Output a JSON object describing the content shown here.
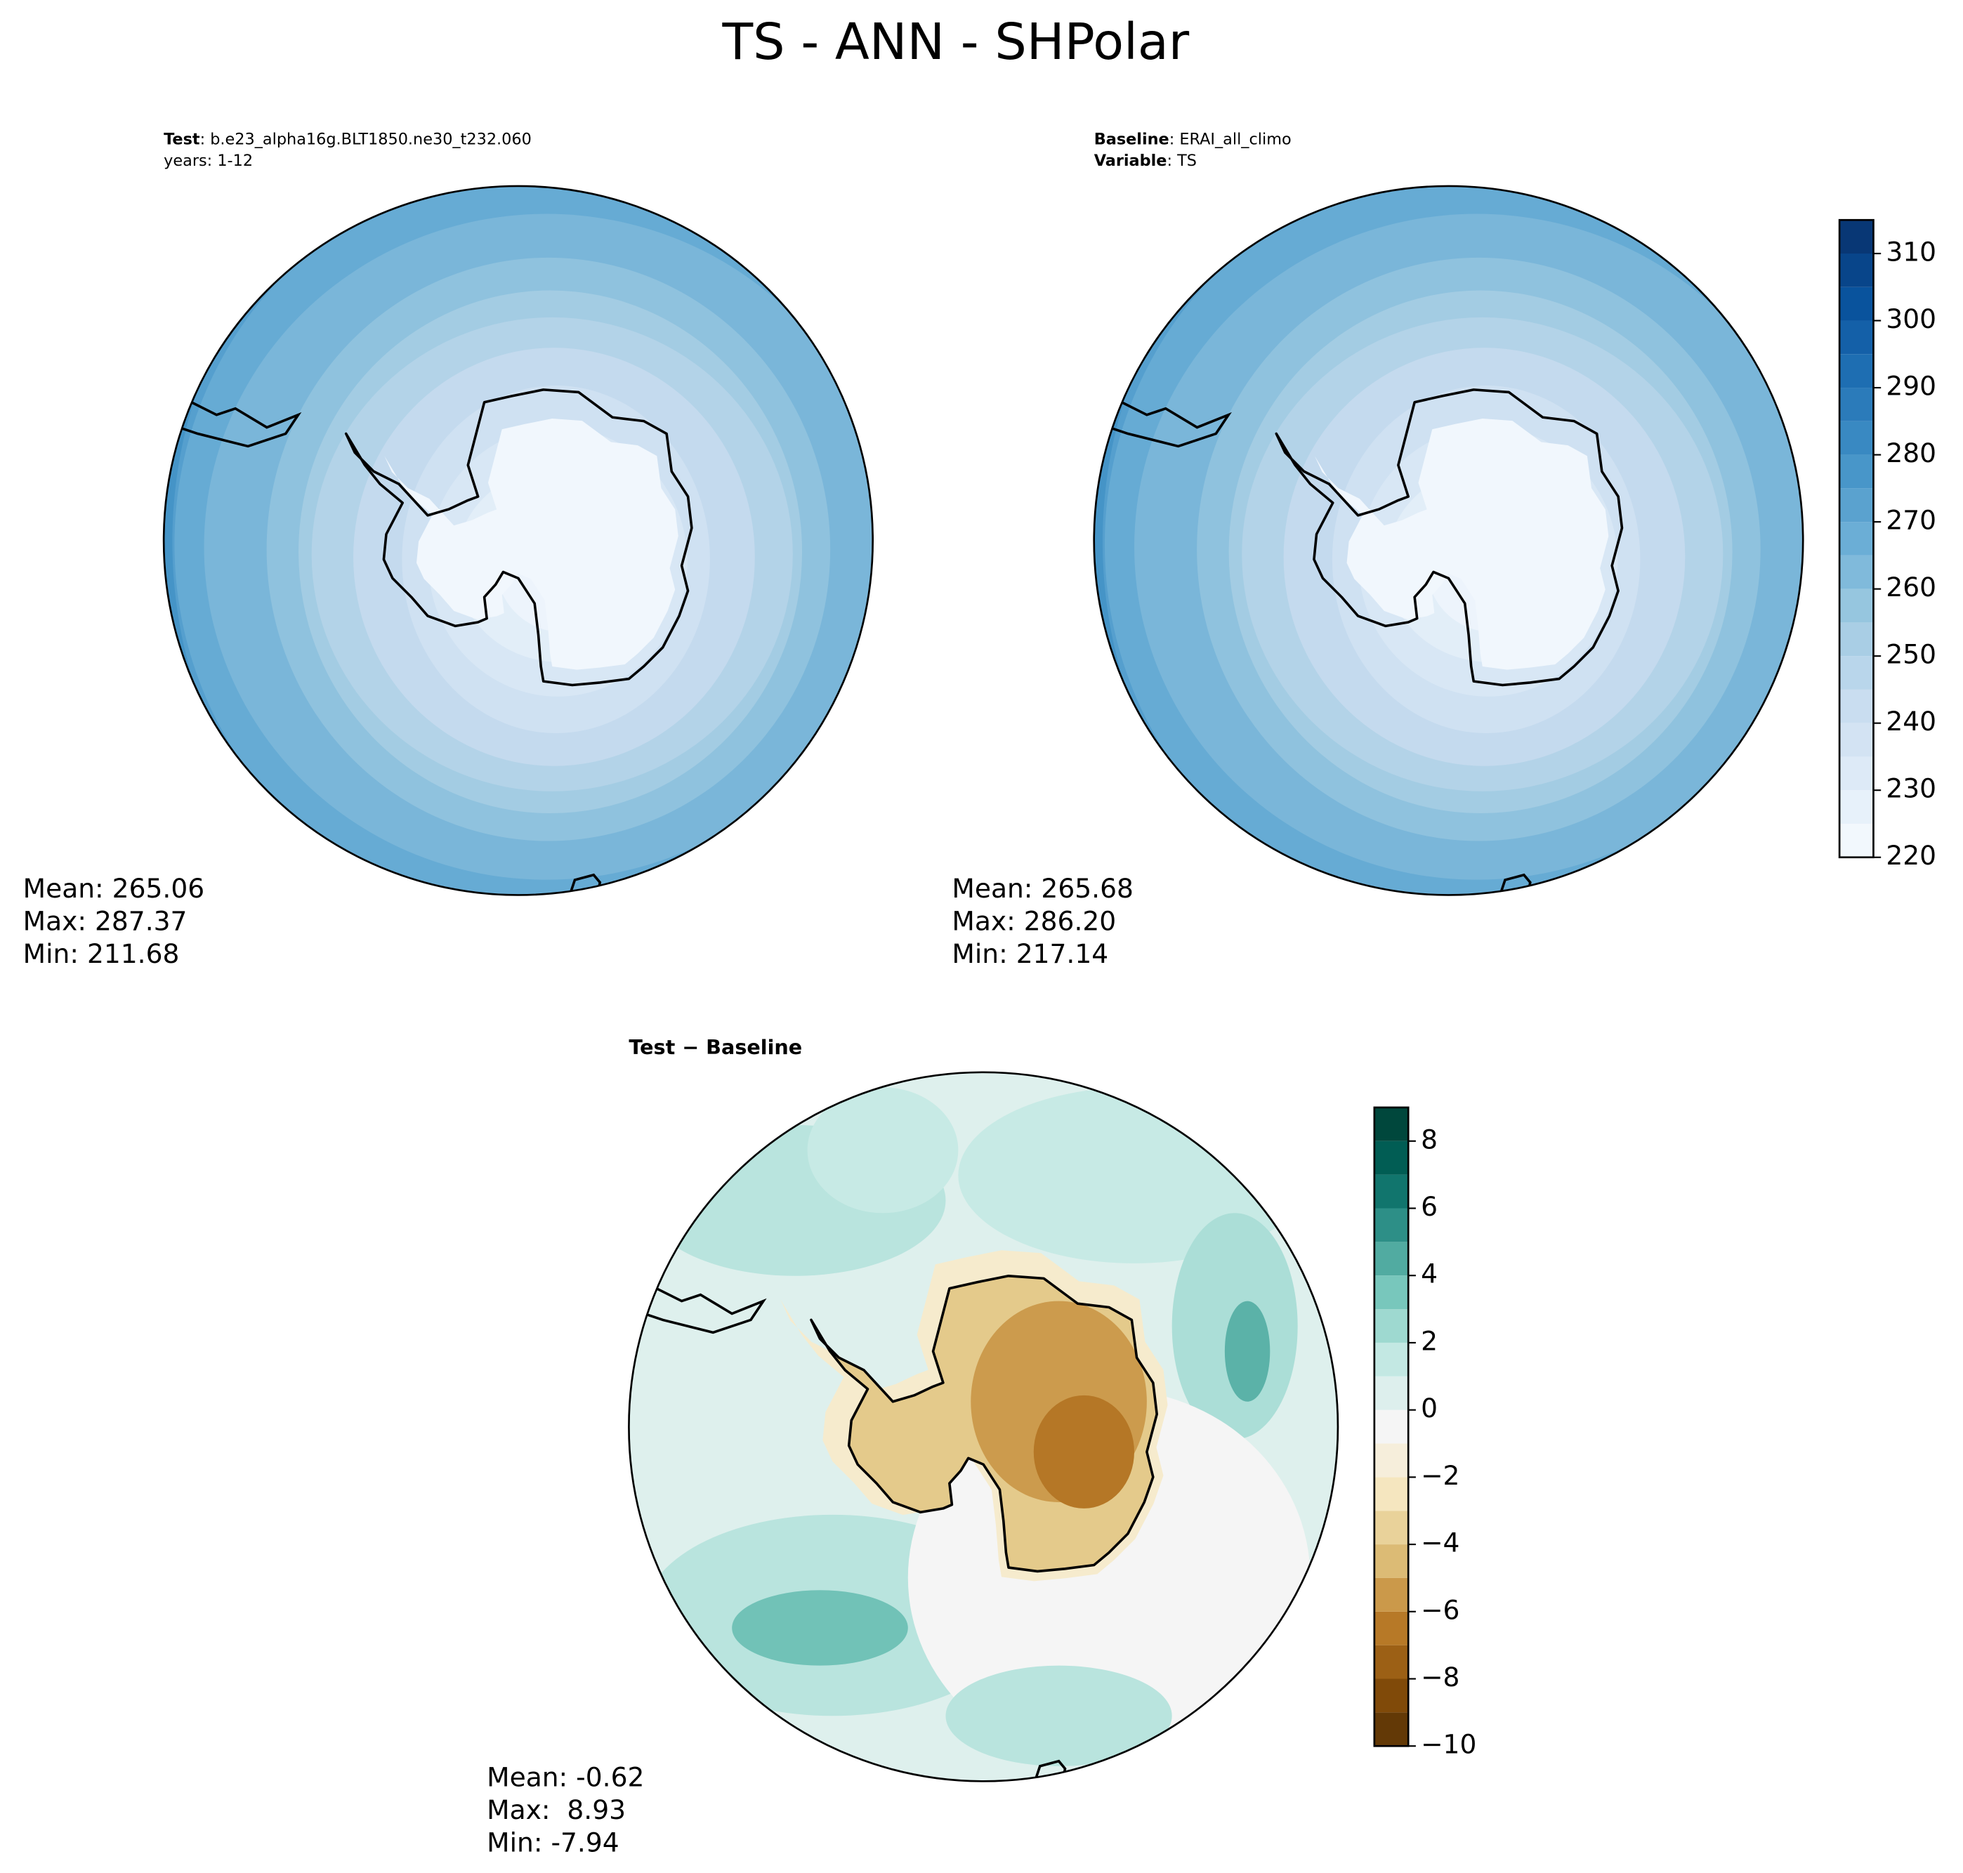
{
  "chart_data": {
    "type": "polar-map",
    "title": "TS - ANN - SHPolar",
    "panels": [
      {
        "header": [
          {
            "label": "Test",
            "text": ": b.e23_alpha16g.BLT1850.ne30_t232.060"
          },
          {
            "text": "years: 1-12"
          }
        ],
        "stats": [
          "Mean: 265.06",
          "Max: 287.37",
          "Min: 211.68"
        ]
      },
      {
        "header": [
          {
            "label": "Baseline",
            "text": ": ERAI_all_climo"
          },
          {
            "label": "Variable",
            "text": ": TS"
          }
        ],
        "stats": [
          "Mean: 265.68",
          "Max: 286.20",
          "Min: 217.14"
        ]
      },
      {
        "header": [
          {
            "label": "Test − Baseline"
          }
        ],
        "stats": [
          "Mean: -0.62",
          "Max:  8.93",
          "Min: -7.94"
        ]
      }
    ],
    "colorbars": [
      {
        "colormap": "Blues",
        "lim": [
          220,
          315
        ],
        "levels": [
          220,
          225,
          230,
          235,
          240,
          245,
          250,
          255,
          260,
          265,
          270,
          275,
          280,
          285,
          290,
          295,
          300,
          305,
          310,
          315
        ],
        "ticks": [
          220,
          230,
          240,
          250,
          260,
          270,
          280,
          290,
          300,
          310
        ]
      },
      {
        "colormap": "BrBG",
        "lim": [
          -10,
          9
        ],
        "levels": [
          -10,
          -9,
          -8,
          -7,
          -6,
          -5,
          -4,
          -3,
          -2,
          -1,
          0,
          1,
          2,
          3,
          4,
          5,
          6,
          7,
          8,
          9
        ],
        "ticks": [
          {
            "value": -10,
            "label": "−10"
          },
          {
            "value": -8,
            "label": "−8"
          },
          {
            "value": -6,
            "label": "−6"
          },
          {
            "value": -4,
            "label": "−4"
          },
          {
            "value": -2,
            "label": "−2"
          },
          0,
          2,
          4,
          6,
          8
        ]
      }
    ]
  }
}
